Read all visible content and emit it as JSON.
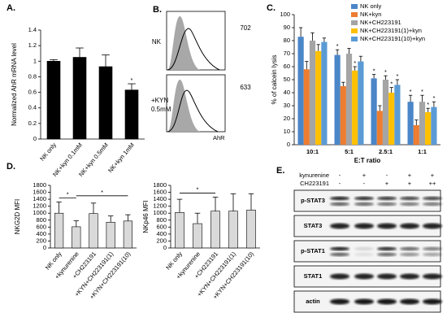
{
  "chart_data": [
    {
      "type": "bar",
      "panel": "A.",
      "ylabel": "Normalized AhR mRNA level",
      "categories": [
        "NK only",
        "NK+kyn 0.1mM",
        "NK+kyn 0.5mM",
        "NK+kyn 1mM"
      ],
      "values": [
        1,
        1.05,
        0.93,
        0.63
      ],
      "errors": [
        0.02,
        0.12,
        0.15,
        0.08
      ],
      "significance": [
        null,
        null,
        null,
        "*"
      ],
      "color": "#000000",
      "ylim": [
        0,
        1.4
      ],
      "yticks": [
        0,
        0.2,
        0.4,
        0.6,
        0.8,
        1,
        1.2,
        1.4
      ]
    },
    {
      "type": "bar",
      "panel": "C.",
      "ylabel": "% of calcein lysis",
      "xlabel": "E:T ratio",
      "categories": [
        "10:1",
        "5:1",
        "2.5:1",
        "1:1"
      ],
      "legend": "upper right",
      "series": [
        {
          "name": "NK only",
          "color": "#4a86c8",
          "values": [
            83,
            69,
            51,
            33
          ],
          "errors": [
            7,
            4,
            3,
            5
          ],
          "significance": [
            null,
            "*",
            "*",
            "*"
          ]
        },
        {
          "name": "NK+kyn",
          "color": "#ed7d31",
          "values": [
            58,
            45,
            26,
            15
          ],
          "errors": [
            6,
            3,
            4,
            4
          ],
          "significance": [
            null,
            null,
            null,
            null
          ]
        },
        {
          "name": "NK+CH223191",
          "color": "#a5a5a5",
          "values": [
            80,
            70,
            50,
            33
          ],
          "errors": [
            6,
            4,
            3,
            5
          ],
          "significance": [
            null,
            null,
            "*",
            "*"
          ]
        },
        {
          "name": "NK+CH223191(1)+kyn",
          "color": "#ffc000",
          "values": [
            72,
            57,
            40,
            25
          ],
          "errors": [
            5,
            3,
            4,
            3
          ],
          "significance": [
            null,
            "*",
            "*",
            "*"
          ]
        },
        {
          "name": "NK+CH223191(10)+kyn",
          "color": "#5b9bd5",
          "values": [
            79,
            64,
            46,
            29
          ],
          "errors": [
            3,
            4,
            4,
            4
          ],
          "significance": [
            null,
            null,
            "*",
            "*"
          ]
        }
      ],
      "ylim": [
        0,
        100
      ],
      "yticks": [
        0,
        10,
        20,
        30,
        40,
        50,
        60,
        70,
        80,
        90,
        100
      ]
    },
    {
      "type": "bar",
      "panel": "D.",
      "ylabel": "NKG2D MFI",
      "categories": [
        "NK only",
        "+kynurenine",
        "+CH223191",
        "+KYN+CH223191(1)",
        "+KYN+CH223191(10)"
      ],
      "values": [
        1000,
        610,
        990,
        740,
        775
      ],
      "errors": [
        320,
        170,
        300,
        180,
        180
      ],
      "color": "#d9d9d9",
      "comparisons": [
        {
          "from": 0,
          "to": 1,
          "text": "*"
        },
        {
          "from": 1,
          "to": 4,
          "text": "*"
        }
      ],
      "ylim": [
        0,
        1800
      ],
      "yticks": [
        0,
        200,
        400,
        600,
        800,
        1000,
        1200,
        1400,
        1600,
        1800
      ]
    },
    {
      "type": "bar",
      "ylabel": "NKp46 MFI",
      "categories": [
        "NK only",
        "+kynurenine",
        "+CH223191",
        "+KYN+CH223191(1)",
        "+KYN+CH223191(10)"
      ],
      "values": [
        1020,
        700,
        1060,
        1060,
        1090
      ],
      "errors": [
        380,
        300,
        400,
        500,
        470
      ],
      "color": "#d9d9d9",
      "comparisons": [
        {
          "from": 0,
          "to": 2,
          "text": "*"
        }
      ],
      "ylim": [
        0,
        1800
      ],
      "yticks": [
        0,
        200,
        400,
        600,
        800,
        1000,
        1200,
        1400,
        1600,
        1800
      ]
    }
  ],
  "panel_b": {
    "label": "B.",
    "xlabel": "AhR",
    "histograms": [
      {
        "sample": [
          "NK"
        ],
        "mfi": 702
      },
      {
        "sample": [
          "+KYN",
          "0.5mM"
        ],
        "mfi": 633
      }
    ]
  },
  "panel_e": {
    "label": "E.",
    "treatments": [
      {
        "name": "kynurenine",
        "levels": [
          "-",
          "+",
          "-",
          "+",
          "+"
        ]
      },
      {
        "name": "CH223191",
        "levels": [
          "-",
          "-",
          "+",
          "+",
          "++"
        ]
      }
    ],
    "blots": [
      "p-STAT3",
      "STAT3",
      "p-STAT1",
      "STAT1",
      "actin"
    ]
  }
}
